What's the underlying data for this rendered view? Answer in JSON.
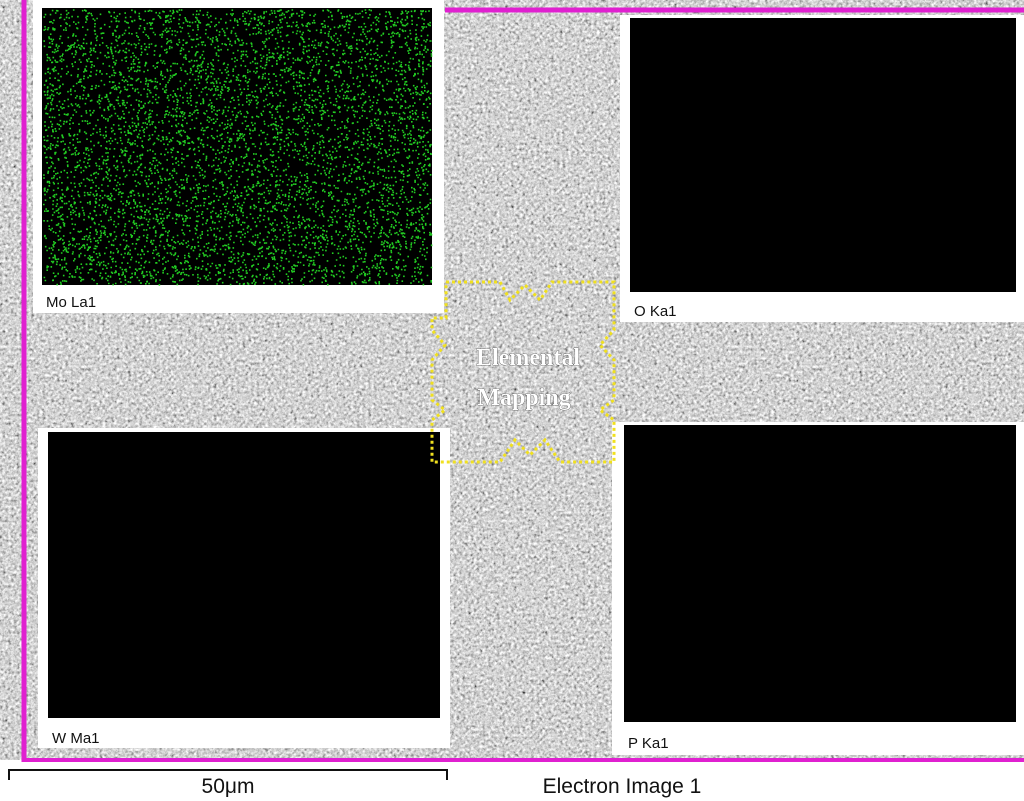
{
  "panels": [
    {
      "label": "Mo La1"
    },
    {
      "label": "O Ka1"
    },
    {
      "label": "W Ma1"
    },
    {
      "label": "P Ka1"
    }
  ],
  "center_label": {
    "line1": "Elemental",
    "line2": "Mapping"
  },
  "scale_bar": {
    "label": "50μm"
  },
  "caption": "Electron Image 1"
}
